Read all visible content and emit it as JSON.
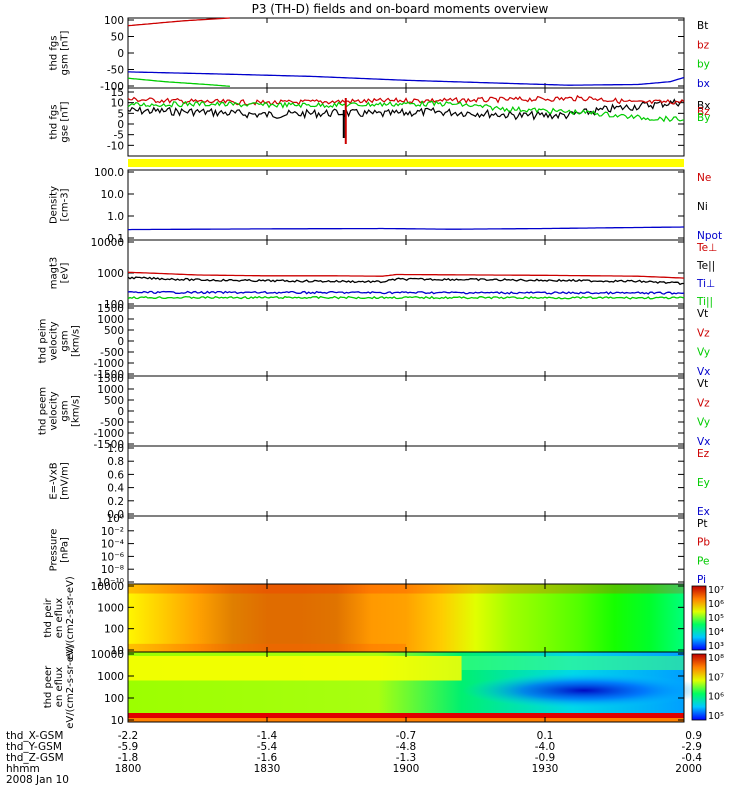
{
  "title": "P3 (TH-D) fields and on-board moments overview",
  "date_label": "2008 Jan 10",
  "ephemeris": {
    "labels": [
      "thd_X-GSM",
      "thd_Y-GSM",
      "thd_Z-GSM",
      "hhmm"
    ],
    "ticks": [
      {
        "x": "-2.2",
        "y": "-5.9",
        "z": "-1.8",
        "t": "1800"
      },
      {
        "x": "-1.4",
        "y": "-5.4",
        "z": "-1.6",
        "t": "1830"
      },
      {
        "x": "-0.7",
        "y": "-4.8",
        "z": "-1.3",
        "t": "1900"
      },
      {
        "x": "0.1",
        "y": "-4.0",
        "z": "-0.9",
        "t": "1930"
      },
      {
        "x": "0.9",
        "y": "-2.9",
        "z": "-0.4",
        "t": "2000"
      }
    ]
  },
  "colors": {
    "black": "#000000",
    "red": "#cc0000",
    "green": "#00cc00",
    "blue": "#0000cc",
    "bar": "#ffff00"
  },
  "chart_data": [
    {
      "type": "line",
      "ylabel": "thd fgs gsm [nT]",
      "ylim": [
        -100,
        100
      ],
      "yticks": [
        "100",
        "50",
        "0",
        "-50",
        "-100"
      ],
      "series": [
        {
          "name": "Bt",
          "color": "black",
          "points": []
        },
        {
          "name": "bz",
          "color": "red",
          "points": [
            [
              1800,
              78
            ],
            [
              1812,
              92
            ],
            [
              1822,
              100
            ]
          ]
        },
        {
          "name": "by",
          "color": "green",
          "points": [
            [
              1800,
              -72
            ],
            [
              1808,
              -82
            ],
            [
              1817,
              -90
            ],
            [
              1822,
              -95
            ]
          ]
        },
        {
          "name": "bx",
          "color": "blue",
          "points": [
            [
              1800,
              -54
            ],
            [
              1820,
              -60
            ],
            [
              1840,
              -67
            ],
            [
              1900,
              -78
            ],
            [
              1920,
              -86
            ],
            [
              1935,
              -92
            ],
            [
              1950,
              -90
            ],
            [
              1957,
              -82
            ],
            [
              2000,
              -70
            ]
          ]
        }
      ]
    },
    {
      "type": "line",
      "ylabel": "thd fgs gse [nT]",
      "ylim": [
        -15,
        15
      ],
      "yticks": [
        "15",
        "10",
        "5",
        "0",
        "-5",
        "-10"
      ],
      "series": [
        {
          "name": "Bx",
          "color": "black",
          "points": [
            [
              1800,
              5
            ],
            [
              1815,
              4.5
            ],
            [
              1830,
              3.2
            ],
            [
              1845,
              4
            ],
            [
              1855,
              3.5
            ],
            [
              1900,
              4
            ],
            [
              1905,
              4.5
            ],
            [
              1915,
              4
            ],
            [
              1925,
              2.8
            ],
            [
              1935,
              3
            ],
            [
              1945,
              6
            ],
            [
              1955,
              8
            ],
            [
              2000,
              9
            ]
          ]
        },
        {
          "name": "Bz",
          "color": "red",
          "points": [
            [
              1800,
              10
            ],
            [
              1815,
              9
            ],
            [
              1830,
              8.5
            ],
            [
              1845,
              9
            ],
            [
              1900,
              9.5
            ],
            [
              1910,
              9.5
            ],
            [
              1925,
              10
            ],
            [
              1940,
              10.5
            ],
            [
              1950,
              8.5
            ],
            [
              2000,
              9
            ]
          ]
        },
        {
          "name": "By",
          "color": "green",
          "points": [
            [
              1800,
              7.5
            ],
            [
              1815,
              8
            ],
            [
              1830,
              7.5
            ],
            [
              1845,
              7.5
            ],
            [
              1900,
              8
            ],
            [
              1910,
              8
            ],
            [
              1920,
              6
            ],
            [
              1930,
              5
            ],
            [
              1940,
              4
            ],
            [
              1950,
              2
            ],
            [
              2000,
              1
            ]
          ]
        }
      ]
    },
    {
      "type": "line",
      "ylabel": "Density [cm-3]",
      "yscale": "log",
      "ylim": [
        0.1,
        100
      ],
      "yticks": [
        "100.0",
        "10.0",
        "1.0",
        "0.1"
      ],
      "series": [
        {
          "name": "Ne",
          "color": "red",
          "points": []
        },
        {
          "name": "Ni",
          "color": "black",
          "points": []
        },
        {
          "name": "Npot",
          "color": "blue",
          "points": [
            [
              1800,
              0.28
            ],
            [
              1830,
              0.3
            ],
            [
              1855,
              0.31
            ],
            [
              1910,
              0.29
            ],
            [
              1930,
              0.31
            ],
            [
              2000,
              0.36
            ]
          ]
        }
      ]
    },
    {
      "type": "line",
      "ylabel": "magt3 [eV]",
      "yscale": "log",
      "ylim": [
        100,
        10000
      ],
      "yticks": [
        "10000",
        "1000",
        "100"
      ],
      "series": [
        {
          "name": "Te⊥",
          "color": "red",
          "points": [
            [
              1800,
              1050
            ],
            [
              1815,
              870
            ],
            [
              1830,
              820
            ],
            [
              1845,
              820
            ],
            [
              1855,
              800
            ],
            [
              1858,
              900
            ],
            [
              1910,
              880
            ],
            [
              1930,
              850
            ],
            [
              1950,
              800
            ],
            [
              2000,
              700
            ]
          ]
        },
        {
          "name": "Te||",
          "color": "black",
          "points": [
            [
              1800,
              720
            ],
            [
              1815,
              620
            ],
            [
              1830,
              580
            ],
            [
              1845,
              560
            ],
            [
              1855,
              540
            ],
            [
              1858,
              650
            ],
            [
              1910,
              640
            ],
            [
              1930,
              600
            ],
            [
              1950,
              560
            ],
            [
              2000,
              480
            ]
          ]
        },
        {
          "name": "Ti⊥",
          "color": "blue",
          "points": [
            [
              1800,
              260
            ],
            [
              1830,
              255
            ],
            [
              1900,
              255
            ],
            [
              1930,
              250
            ],
            [
              2000,
              245
            ]
          ]
        },
        {
          "name": "Ti||",
          "color": "green",
          "points": [
            [
              1800,
              180
            ],
            [
              1830,
              180
            ],
            [
              1900,
              180
            ],
            [
              1930,
              178
            ],
            [
              2000,
              175
            ]
          ]
        }
      ]
    },
    {
      "type": "line",
      "ylabel": "thd peim velocity gsm [km/s]",
      "ylim": [
        -1500,
        1500
      ],
      "yticks": [
        "1500",
        "1000",
        "500",
        "0",
        "-500",
        "-1000",
        "-1500"
      ],
      "series": [
        {
          "name": "Vt",
          "color": "black",
          "points": []
        },
        {
          "name": "Vz",
          "color": "red",
          "points": []
        },
        {
          "name": "Vy",
          "color": "green",
          "points": []
        },
        {
          "name": "Vx",
          "color": "blue",
          "points": []
        }
      ]
    },
    {
      "type": "line",
      "ylabel": "thd peem velocity gsm [km/s]",
      "ylim": [
        -1500,
        1500
      ],
      "yticks": [
        "1500",
        "1000",
        "500",
        "0",
        "-500",
        "-1000",
        "-1500"
      ],
      "series": [
        {
          "name": "Vt",
          "color": "black",
          "points": []
        },
        {
          "name": "Vz",
          "color": "red",
          "points": []
        },
        {
          "name": "Vy",
          "color": "green",
          "points": []
        },
        {
          "name": "Vx",
          "color": "blue",
          "points": []
        }
      ]
    },
    {
      "type": "line",
      "ylabel": "E=-VxB [mV/m]",
      "ylim": [
        0,
        1
      ],
      "yticks": [
        "1.0",
        "0.8",
        "0.6",
        "0.4",
        "0.2",
        "0.0"
      ],
      "series": [
        {
          "name": "Ez",
          "color": "red",
          "points": []
        },
        {
          "name": "Ey",
          "color": "green",
          "points": []
        },
        {
          "name": "Ex",
          "color": "blue",
          "points": []
        }
      ]
    },
    {
      "type": "line",
      "ylabel": "Pressure [nPa]",
      "yscale": "log",
      "yticks": [
        "10⁰",
        "10⁻²",
        "10⁻⁴",
        "10⁻⁶",
        "10⁻⁸",
        "10⁻¹⁰"
      ],
      "series": [
        {
          "name": "Pt",
          "color": "black",
          "points": []
        },
        {
          "name": "Pb",
          "color": "red",
          "points": []
        },
        {
          "name": "Pe",
          "color": "green",
          "points": []
        },
        {
          "name": "Pi",
          "color": "blue",
          "points": []
        }
      ]
    },
    {
      "type": "heatmap",
      "ylabel": "thd peir en eflux eV/(cm2-s-sr-eV)",
      "yscale": "log",
      "yticks": [
        "10000",
        "1000",
        "100",
        "10"
      ],
      "colorbar_ticks": [
        "10⁷",
        "10⁶",
        "10⁵",
        "10⁴",
        "10³"
      ],
      "column_profile": [
        0.76,
        0.8,
        0.84,
        0.86,
        0.88,
        0.88,
        0.87,
        0.85,
        0.84,
        0.8,
        0.72,
        0.66,
        0.62,
        0.58,
        0.52,
        0.46,
        0.38
      ]
    },
    {
      "type": "heatmap",
      "ylabel": "thd peer en eflux eV/(cm2-s-sr-eV)",
      "yscale": "log",
      "yticks": [
        "10000",
        "1000",
        "100",
        "10"
      ],
      "colorbar_ticks": [
        "10⁸",
        "10⁷",
        "10⁶",
        "10⁵"
      ]
    }
  ]
}
